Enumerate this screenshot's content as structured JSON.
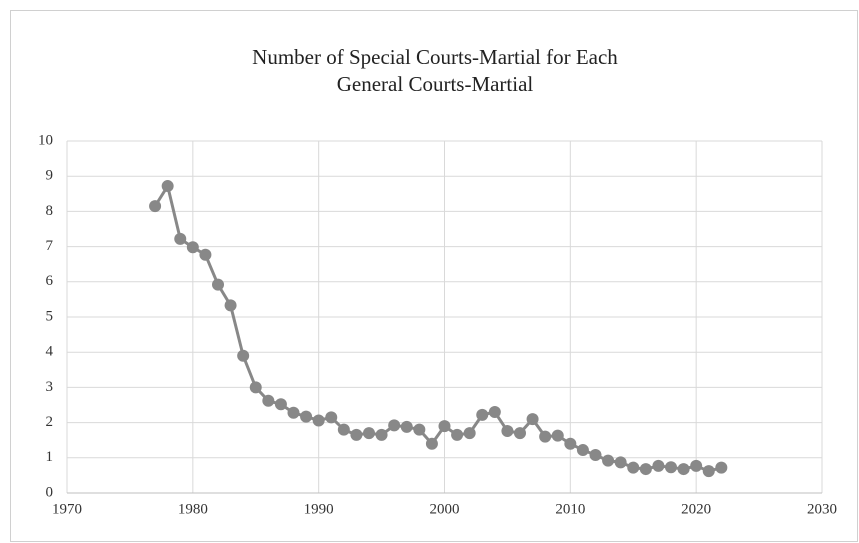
{
  "chart_data": {
    "type": "line",
    "title": [
      "Number of Special Courts-Martial for Each",
      "General Courts-Martial"
    ],
    "x": [
      1977,
      1978,
      1979,
      1980,
      1981,
      1982,
      1983,
      1984,
      1985,
      1986,
      1987,
      1988,
      1989,
      1990,
      1991,
      1992,
      1993,
      1994,
      1995,
      1996,
      1997,
      1998,
      1999,
      2000,
      2001,
      2002,
      2003,
      2004,
      2005,
      2006,
      2007,
      2008,
      2009,
      2010,
      2011,
      2012,
      2013,
      2014,
      2015,
      2016,
      2017,
      2018,
      2019,
      2020,
      2021,
      2022
    ],
    "values": [
      8.15,
      8.72,
      7.22,
      6.98,
      6.77,
      5.92,
      5.33,
      3.9,
      3.0,
      2.62,
      2.52,
      2.28,
      2.17,
      2.06,
      2.15,
      1.8,
      1.65,
      1.7,
      1.65,
      1.92,
      1.88,
      1.8,
      1.4,
      1.9,
      1.65,
      1.7,
      2.22,
      2.3,
      1.76,
      1.7,
      2.1,
      1.6,
      1.63,
      1.4,
      1.22,
      1.08,
      0.92,
      0.87,
      0.72,
      0.68,
      0.77,
      0.73,
      0.68,
      0.77,
      0.62,
      0.72
    ],
    "color": "#888888",
    "xlim": [
      1970,
      2030
    ],
    "xticks": [
      1970,
      1980,
      1990,
      2000,
      2010,
      2020,
      2030
    ],
    "ylim": [
      0,
      10
    ],
    "yticks": [
      0,
      1,
      2,
      3,
      4,
      5,
      6,
      7,
      8,
      9,
      10
    ],
    "grid": true
  }
}
